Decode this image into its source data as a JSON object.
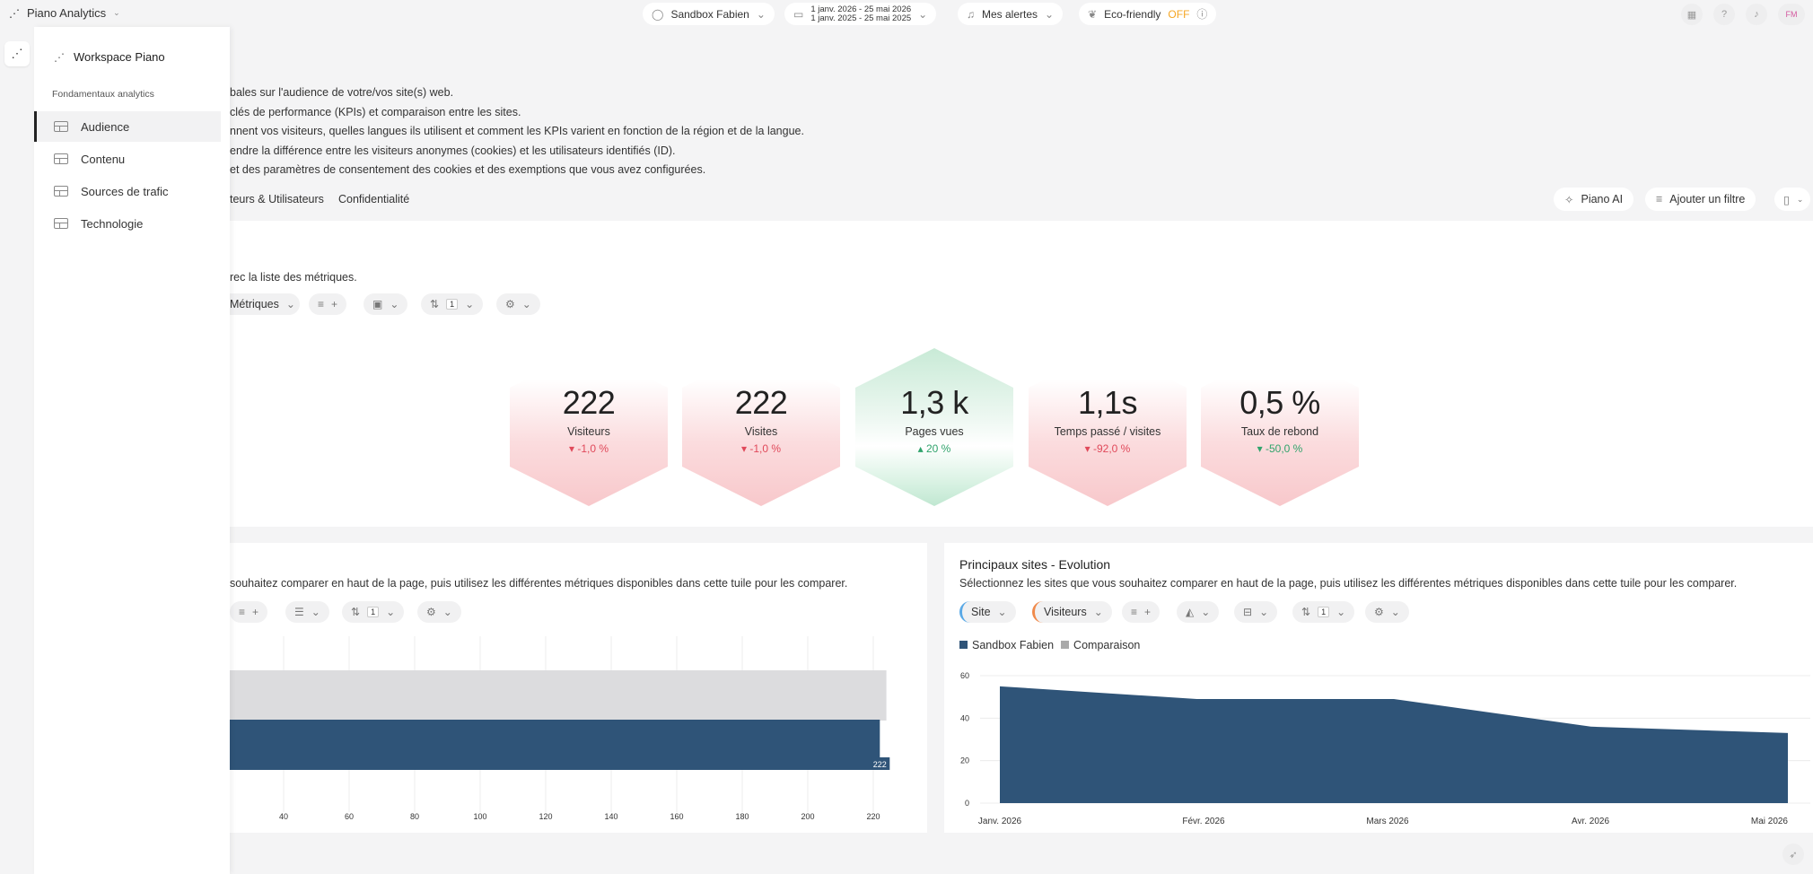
{
  "app": {
    "title": "Piano Analytics"
  },
  "topbar": {
    "site": "Sandbox Fabien",
    "date_main": "1 janv. 2026 - 25 mai 2026",
    "date_compare": "1 janv. 2025 - 25 mai 2025",
    "alerts": "Mes alertes",
    "eco_label": "Eco-friendly",
    "eco_state": "OFF",
    "avatar": "FM"
  },
  "sidebar": {
    "workspace": "Workspace Piano",
    "section": "Fondamentaux analytics",
    "items": [
      {
        "label": "Audience",
        "active": true
      },
      {
        "label": "Contenu",
        "active": false
      },
      {
        "label": "Sources de trafic",
        "active": false
      },
      {
        "label": "Technologie",
        "active": false
      }
    ]
  },
  "main": {
    "descriptions": [
      "bales sur l'audience de votre/vos site(s) web.",
      " clés de performance (KPIs) et comparaison entre les sites.",
      "nnent vos visiteurs, quelles langues ils utilisent et comment les KPIs varient en fonction de la région et de la langue.",
      "endre la différence entre les visiteurs anonymes (cookies) et les utilisateurs identifiés (ID).",
      "et des paramètres de consentement des cookies et des exemptions que vous avez configurées."
    ],
    "tabs": [
      "teurs & Utilisateurs",
      "Confidentialité"
    ],
    "piano_ai": "Piano AI",
    "add_filter": "Ajouter un filtre"
  },
  "kpi_tile": {
    "intro": "rec la liste des métriques.",
    "metrics_chip": "Métriques",
    "sort_count": "1",
    "kpis": [
      {
        "value": "222",
        "label": "Visiteurs",
        "delta": "-1,0 %",
        "trend": "down"
      },
      {
        "value": "222",
        "label": "Visites",
        "delta": "-1,0 %",
        "trend": "down"
      },
      {
        "value": "1,3 k",
        "label": "Pages vues",
        "delta": "20 %",
        "trend": "up"
      },
      {
        "value": "1,1s",
        "label": "Temps passé / visites",
        "delta": "-92,0 %",
        "trend": "down"
      },
      {
        "value": "0,5 %",
        "label": "Taux de rebond",
        "delta": "-50,0 %",
        "trend": "down"
      }
    ]
  },
  "bar_tile": {
    "desc": "souhaitez comparer en haut de la page, puis utilisez les différentes métriques disponibles dans cette tuile pour les comparer.",
    "sort_count": "1"
  },
  "evolution_tile": {
    "title": "Principaux sites - Evolution",
    "desc": "Sélectionnez les sites que vous souhaitez comparer en haut de la page, puis utilisez les différentes métriques disponibles dans cette tuile pour les comparer.",
    "chip_site": "Site",
    "chip_metric": "Visiteurs",
    "sort_count": "1"
  },
  "colors": {
    "primary_series": "#2f5478",
    "compare_series": "#dcdcde",
    "negative": "#e0495a",
    "positive": "#2fa36b"
  },
  "chart_data": [
    {
      "type": "bar",
      "orientation": "horizontal",
      "series": [
        {
          "name": "Comparaison",
          "values": [
            224
          ]
        },
        {
          "name": "Sandbox Fabien",
          "values": [
            222
          ]
        }
      ],
      "data_labels": [
        "222"
      ],
      "x_ticks": [
        "40",
        "60",
        "80",
        "100",
        "120",
        "140",
        "160",
        "180",
        "200",
        "220"
      ],
      "xlim": [
        0,
        230
      ]
    },
    {
      "type": "area",
      "title": "Principaux sites - Evolution",
      "categories": [
        "Janv. 2026",
        "Févr. 2026",
        "Mars 2026",
        "Avr. 2026",
        "Mai 2026"
      ],
      "series": [
        {
          "name": "Sandbox Fabien",
          "values": [
            55,
            49,
            49,
            36,
            33
          ]
        }
      ],
      "legend": [
        "Sandbox Fabien",
        "Comparaison"
      ],
      "y_ticks": [
        "0",
        "20",
        "40",
        "60"
      ],
      "ylim": [
        0,
        60
      ]
    }
  ]
}
